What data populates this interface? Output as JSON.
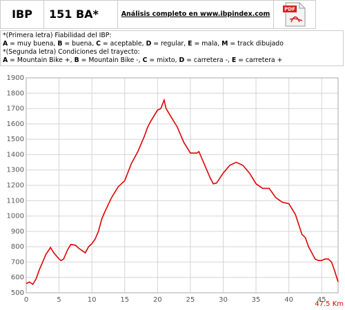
{
  "header": {
    "brand": "IBP",
    "score": "151 BA*",
    "link": "Análisis completo en www.ibpindex.com",
    "pdf_icon": "PDF"
  },
  "notes": {
    "line1": "*(Primera letra) Fiabilidad del IBP:",
    "line2": [
      "A",
      " = muy buena, ",
      "B",
      " = buena, ",
      "C",
      " = aceptable, ",
      "D",
      " = regular, ",
      "E",
      " = mala, ",
      "M",
      " = track dibujado"
    ],
    "line3": "*(Segunda letra) Condiciones del trayecto:",
    "line4": [
      "A",
      " = Mountain Bike +, ",
      "B",
      " = Mountain Bike -, ",
      "C",
      " = mixto, ",
      "D",
      " = carretera -, ",
      "E",
      " = carretera +"
    ]
  },
  "chart_data": {
    "type": "line",
    "distance_label": "47.5 Km",
    "x": [
      0,
      0.5,
      1,
      1.5,
      2,
      2.5,
      3,
      3.7,
      4.2,
      5,
      5.3,
      5.7,
      6.3,
      6.8,
      7.5,
      8,
      9,
      9.5,
      10,
      10.5,
      11,
      11.5,
      12,
      13,
      14,
      15,
      16,
      17,
      18,
      18.5,
      19,
      20,
      20.5,
      21,
      21.3,
      22,
      23,
      24,
      25,
      26,
      26.3,
      27,
      28,
      28.5,
      29,
      30,
      31,
      32,
      33,
      34,
      35,
      36,
      37,
      38,
      39,
      40,
      41,
      42,
      42.5,
      43,
      44,
      44.5,
      45,
      45.5,
      46,
      46.5,
      47,
      47.5
    ],
    "series": [
      {
        "color": "#dd0000",
        "values": [
          560,
          570,
          555,
          590,
          650,
          700,
          750,
          795,
          760,
          720,
          710,
          720,
          780,
          815,
          810,
          790,
          760,
          800,
          820,
          850,
          900,
          980,
          1030,
          1120,
          1190,
          1230,
          1340,
          1420,
          1520,
          1580,
          1620,
          1690,
          1700,
          1755,
          1700,
          1650,
          1580,
          1480,
          1410,
          1410,
          1420,
          1350,
          1250,
          1210,
          1215,
          1280,
          1330,
          1350,
          1330,
          1280,
          1210,
          1180,
          1180,
          1120,
          1090,
          1080,
          1010,
          880,
          860,
          800,
          720,
          710,
          710,
          720,
          720,
          700,
          640,
          570
        ]
      }
    ],
    "xlim": [
      0,
      47.5
    ],
    "xticks": [
      0,
      5,
      10,
      15,
      20,
      25,
      30,
      35,
      40,
      45
    ],
    "ylim": [
      500,
      1900
    ],
    "yticks": [
      500,
      600,
      700,
      800,
      900,
      1000,
      1100,
      1200,
      1300,
      1400,
      1500,
      1600,
      1700,
      1800,
      1900
    ],
    "grid": true
  }
}
